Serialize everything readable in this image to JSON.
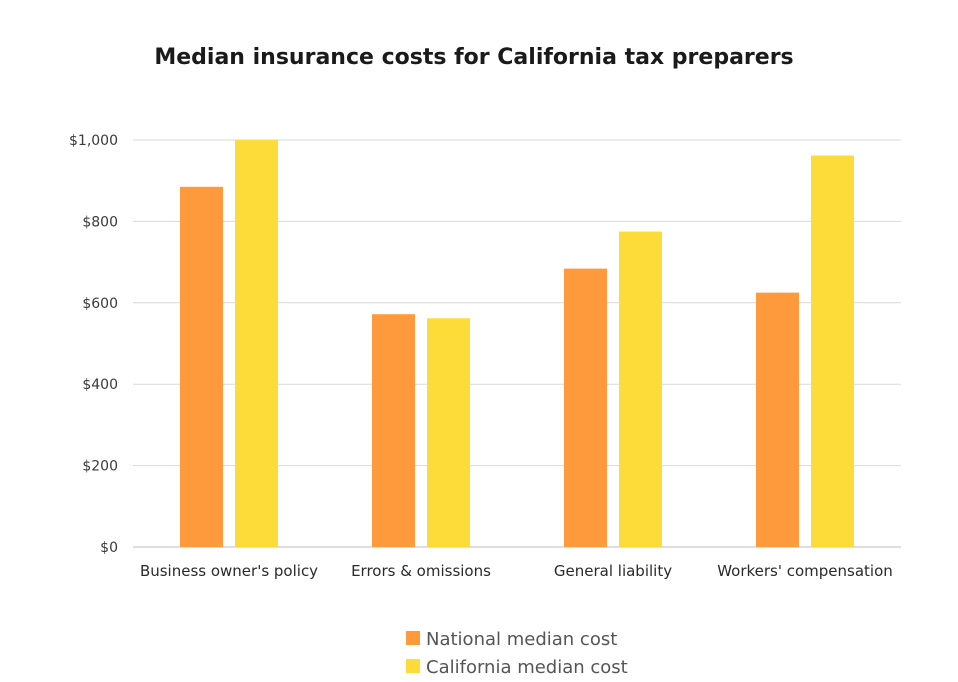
{
  "chart_data": {
    "type": "bar",
    "title": "Median insurance costs for California tax preparers",
    "xlabel": "",
    "ylabel": "",
    "ylim": [
      0,
      1000
    ],
    "yticks": [
      0,
      200,
      400,
      600,
      800,
      1000
    ],
    "ytick_labels": [
      "$0",
      "$200",
      "$400",
      "$600",
      "$800",
      "$1,000"
    ],
    "categories": [
      "Business owner's policy",
      "Errors & omissions",
      "General liability",
      "Workers' compensation"
    ],
    "series": [
      {
        "name": "National median cost",
        "color": "#ff9a3c",
        "values": [
          885,
          572,
          684,
          625
        ]
      },
      {
        "name": "California median cost",
        "color": "#fddc3a",
        "values": [
          1000,
          562,
          775,
          962
        ]
      }
    ],
    "grid": true,
    "legend_position": "bottom-center"
  }
}
